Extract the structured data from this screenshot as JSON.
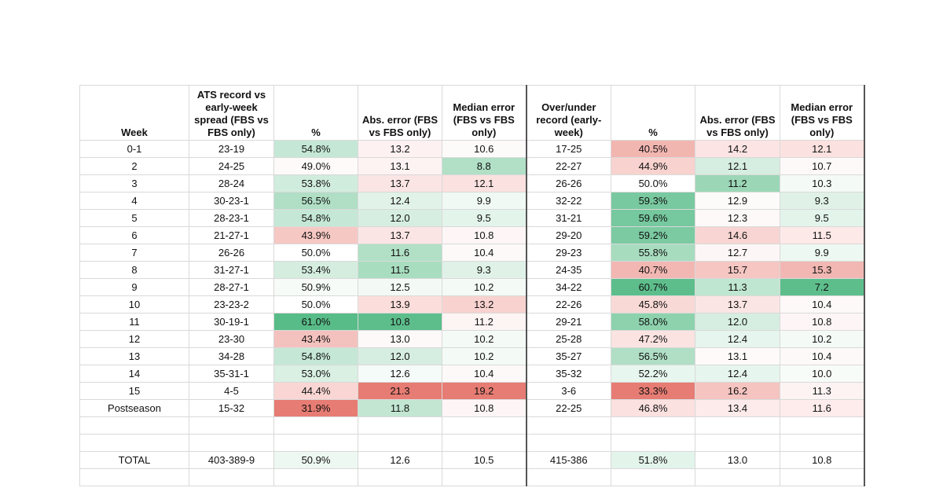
{
  "headers": [
    "Week",
    "ATS record vs early-week spread (FBS vs FBS only)",
    "%",
    "Abs. error (FBS vs FBS only)",
    "Median error (FBS vs FBS only)",
    "Over/under record (early-week)",
    "%",
    "Abs. error (FBS vs FBS only)",
    "Median error (FBS vs FBS only)"
  ],
  "rows": [
    [
      "0-1",
      "23-19",
      "54.8%",
      "13.2",
      "10.6",
      "17-25",
      "40.5%",
      "14.2",
      "12.1"
    ],
    [
      "2",
      "24-25",
      "49.0%",
      "13.1",
      "8.8",
      "22-27",
      "44.9%",
      "12.1",
      "10.7"
    ],
    [
      "3",
      "28-24",
      "53.8%",
      "13.7",
      "12.1",
      "26-26",
      "50.0%",
      "11.2",
      "10.3"
    ],
    [
      "4",
      "30-23-1",
      "56.5%",
      "12.4",
      "9.9",
      "32-22",
      "59.3%",
      "12.9",
      "9.3"
    ],
    [
      "5",
      "28-23-1",
      "54.8%",
      "12.0",
      "9.5",
      "31-21",
      "59.6%",
      "12.3",
      "9.5"
    ],
    [
      "6",
      "21-27-1",
      "43.9%",
      "13.7",
      "10.8",
      "29-20",
      "59.2%",
      "14.6",
      "11.5"
    ],
    [
      "7",
      "26-26",
      "50.0%",
      "11.6",
      "10.4",
      "29-23",
      "55.8%",
      "12.7",
      "9.9"
    ],
    [
      "8",
      "31-27-1",
      "53.4%",
      "11.5",
      "9.3",
      "24-35",
      "40.7%",
      "15.7",
      "15.3"
    ],
    [
      "9",
      "28-27-1",
      "50.9%",
      "12.5",
      "10.2",
      "34-22",
      "60.7%",
      "11.3",
      "7.2"
    ],
    [
      "10",
      "23-23-2",
      "50.0%",
      "13.9",
      "13.2",
      "22-26",
      "45.8%",
      "13.7",
      "10.4"
    ],
    [
      "11",
      "30-19-1",
      "61.0%",
      "10.8",
      "11.2",
      "29-21",
      "58.0%",
      "12.0",
      "10.8"
    ],
    [
      "12",
      "23-30",
      "43.4%",
      "13.0",
      "10.2",
      "25-28",
      "47.2%",
      "12.4",
      "10.2"
    ],
    [
      "13",
      "34-28",
      "54.8%",
      "12.0",
      "10.2",
      "35-27",
      "56.5%",
      "13.1",
      "10.4"
    ],
    [
      "14",
      "35-31-1",
      "53.0%",
      "12.6",
      "10.4",
      "35-32",
      "52.2%",
      "12.4",
      "10.0"
    ],
    [
      "15",
      "4-5",
      "44.4%",
      "21.3",
      "19.2",
      "3-6",
      "33.3%",
      "16.2",
      "11.3"
    ],
    [
      "Postseason",
      "15-32",
      "31.9%",
      "11.8",
      "10.8",
      "22-25",
      "46.8%",
      "13.4",
      "11.6"
    ],
    [
      "",
      "",
      "",
      "",
      "",
      "",
      "",
      "",
      ""
    ],
    [
      "",
      "",
      "",
      "",
      "",
      "",
      "",
      "",
      ""
    ],
    [
      "TOTAL",
      "403-389-9",
      "50.9%",
      "12.6",
      "10.5",
      "415-386",
      "51.8%",
      "13.0",
      "10.8"
    ],
    [
      "",
      "",
      "",
      "",
      "",
      "",
      "",
      "",
      ""
    ]
  ],
  "fills": [
    [
      "",
      "",
      "#c5e8d6",
      "#fdf1f1",
      "#fdfafa",
      "",
      "#f2b6b1",
      "#fbe4e3",
      "#fbe1df"
    ],
    [
      "",
      "",
      "#fefafa",
      "#fdf3f3",
      "#b1e0c6",
      "",
      "#f8d2cf",
      "#d6eee1",
      "#fef9f9"
    ],
    [
      "",
      "",
      "#d0ecdd",
      "#fbe5e4",
      "#fbe1df",
      "",
      "#ffffff",
      "#9bd7b7",
      "#f4fbf7"
    ],
    [
      "",
      "",
      "#b0dfc5",
      "#e1f3e9",
      "#f0f9f4",
      "",
      "#79c9a0",
      "#fdfafa",
      "#e0f2e8"
    ],
    [
      "",
      "",
      "#c5e8d6",
      "#d6eee1",
      "#e3f4eb",
      "",
      "#76c89e",
      "#fef9f9",
      "#e3f4eb"
    ],
    [
      "",
      "",
      "#f6c8c4",
      "#fbe5e4",
      "#fef6f6",
      "",
      "#7bcaa2",
      "#f8d5d2",
      "#fde9e8"
    ],
    [
      "",
      "",
      "#ffffff",
      "#b1e0c6",
      "#fef9f9",
      "",
      "#a8dcbf",
      "#fdf6f6",
      "#eef8f2"
    ],
    [
      "",
      "",
      "#d4eddf",
      "#a9ddc0",
      "#e0f2e8",
      "",
      "#f2b7b2",
      "#f5c6c2",
      "#f2b7b2"
    ],
    [
      "",
      "",
      "#f6fbf8",
      "#f3faf6",
      "#f4fbf7",
      "",
      "#5dbe8c",
      "#bfe6d0",
      "#5dbe8c"
    ],
    [
      "",
      "",
      "#ffffff",
      "#fbdedb",
      "#f8d2cf",
      "",
      "#f9d9d6",
      "#fbe5e4",
      "#fef9f9"
    ],
    [
      "",
      "",
      "#58bc88",
      "#5dbe8c",
      "#fdf4f4",
      "",
      "#8dd2ad",
      "#d6eee1",
      "#fef6f6"
    ],
    [
      "",
      "",
      "#f4c2be",
      "#fdf9f9",
      "#f4fbf7",
      "",
      "#fbe3e1",
      "#e6f5ed",
      "#f4fbf7"
    ],
    [
      "",
      "",
      "#c5e8d6",
      "#d6eee1",
      "#f4fbf7",
      "",
      "#b0dfc5",
      "#fefafa",
      "#fef9f9"
    ],
    [
      "",
      "",
      "#d9f0e3",
      "#f5fbf8",
      "#fef9f9",
      "",
      "#e7f6ee",
      "#e6f5ed",
      "#f7fcf9"
    ],
    [
      "",
      "",
      "#f9d6d3",
      "#e67c73",
      "#e67c73",
      "",
      "#e67c73",
      "#f5c4c0",
      "#fdf3f3"
    ],
    [
      "",
      "",
      "#e67c73",
      "#c2e6d2",
      "#fef6f6",
      "",
      "#fbe1df",
      "#fcebea",
      "#fdeceb"
    ],
    [
      "",
      "",
      "",
      "",
      "",
      "",
      "",
      "",
      ""
    ],
    [
      "",
      "",
      "",
      "",
      "",
      "",
      "",
      "",
      ""
    ],
    [
      "",
      "",
      "#edf8f2",
      "",
      "",
      "",
      "#e3f4eb",
      "",
      ""
    ],
    [
      "",
      "",
      "",
      "",
      "",
      "",
      "",
      "",
      ""
    ]
  ]
}
